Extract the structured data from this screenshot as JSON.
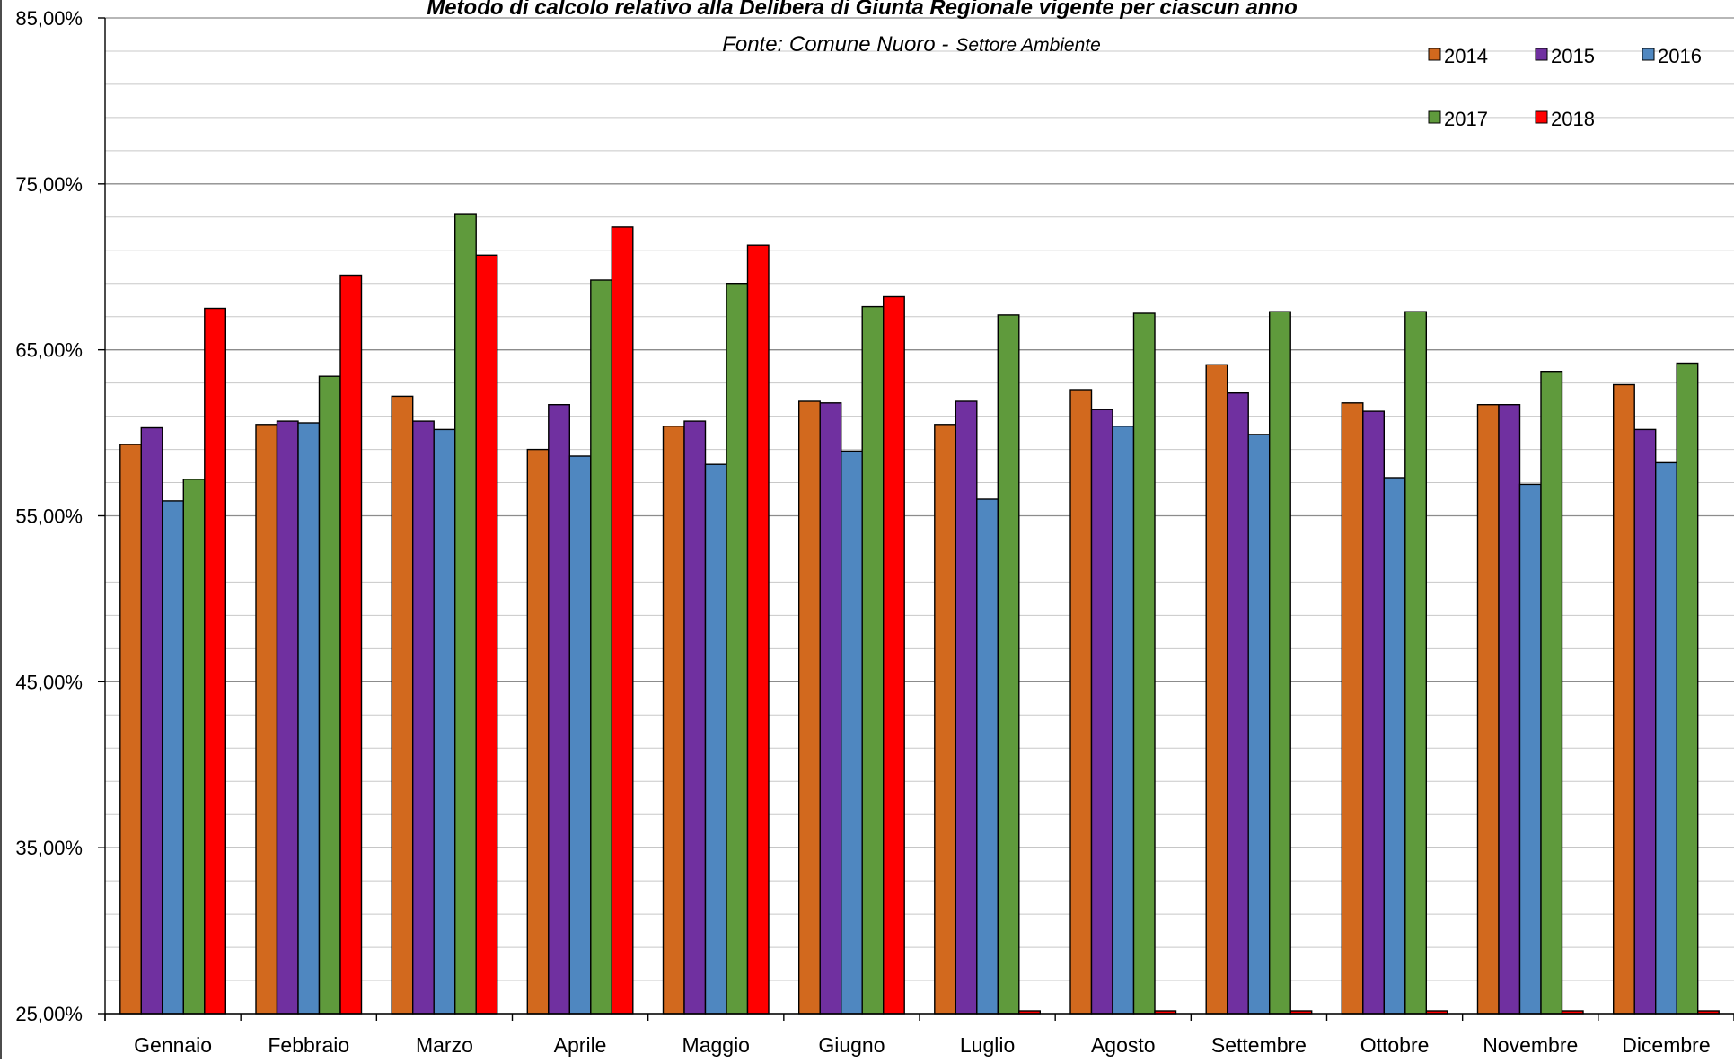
{
  "chart_data": {
    "type": "bar",
    "title": "Metodo di calcolo relativo alla Delibera di Giunta Regionale vigente per ciascun anno",
    "subtitle_main": "Fonte: Comune Nuoro -",
    "subtitle_small": "Settore Ambiente",
    "xlabel": "",
    "ylabel": "",
    "ylim": [
      25,
      85
    ],
    "yticks": [
      "25,00%",
      "35,00%",
      "45,00%",
      "55,00%",
      "65,00%",
      "75,00%",
      "85,00%"
    ],
    "minor_grid_step": 2,
    "grid": true,
    "legend_position": "top-right",
    "categories": [
      "Gennaio",
      "Febbraio",
      "Marzo",
      "Aprile",
      "Maggio",
      "Giugno",
      "Luglio",
      "Agosto",
      "Settembre",
      "Ottobre",
      "Novembre",
      "Dicembre"
    ],
    "series": [
      {
        "name": "2014",
        "color": "#d2691e",
        "values": [
          59.3,
          60.5,
          62.2,
          59.0,
          60.4,
          61.9,
          60.5,
          62.6,
          64.1,
          61.8,
          61.7,
          62.9
        ]
      },
      {
        "name": "2015",
        "color": "#7030a0",
        "values": [
          60.3,
          60.7,
          60.7,
          61.7,
          60.7,
          61.8,
          61.9,
          61.4,
          62.4,
          61.3,
          61.7,
          60.2
        ]
      },
      {
        "name": "2016",
        "color": "#4f87c0",
        "values": [
          55.9,
          60.6,
          60.2,
          58.6,
          58.1,
          58.9,
          56.0,
          60.4,
          59.9,
          57.3,
          56.9,
          58.2
        ]
      },
      {
        "name": "2017",
        "color": "#5f9a3c",
        "values": [
          57.2,
          63.4,
          73.2,
          69.2,
          69.0,
          67.6,
          67.1,
          67.2,
          67.3,
          67.3,
          63.7,
          64.2
        ]
      },
      {
        "name": "2018",
        "color": "#ff0000",
        "values": [
          67.5,
          69.5,
          70.7,
          72.4,
          71.3,
          68.2,
          25.0,
          25.0,
          25.0,
          25.0,
          25.0,
          25.0
        ]
      }
    ]
  }
}
